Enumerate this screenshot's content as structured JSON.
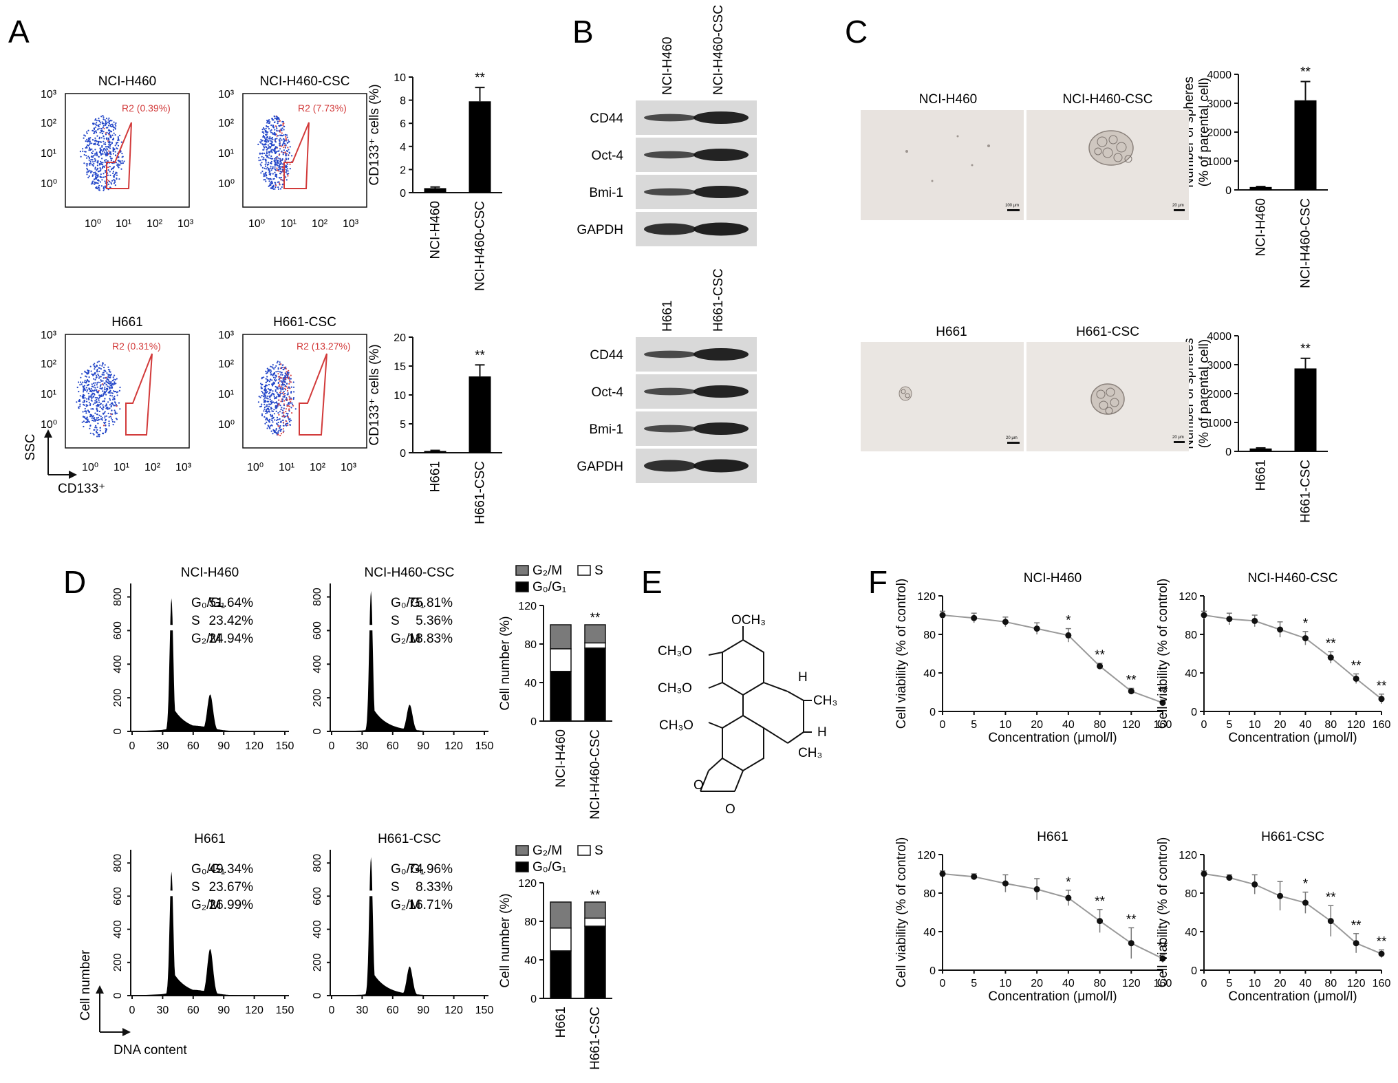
{
  "panels": {
    "A": {
      "label": "A",
      "flow_plots": [
        {
          "title": "NCI-H460",
          "gate": "R2 (0.39%)"
        },
        {
          "title": "NCI-H460-CSC",
          "gate": "R2 (7.73%)"
        },
        {
          "title": "H661",
          "gate": "R2 (0.31%)"
        },
        {
          "title": "H661-CSC",
          "gate": "R2 (13.27%)"
        }
      ],
      "yaxis_label": "SSC",
      "xaxis_label": "CD133⁺",
      "log_ticks": [
        "10⁰",
        "10¹",
        "10²",
        "10³"
      ]
    },
    "B": {
      "label": "B",
      "blots": [
        {
          "lanes": [
            "NCI-H460",
            "NCI-H460-CSC"
          ],
          "rows": [
            "CD44",
            "Oct-4",
            "Bmi-1",
            "GAPDH"
          ]
        },
        {
          "lanes": [
            "H661",
            "H661-CSC"
          ],
          "rows": [
            "CD44",
            "Oct-4",
            "Bmi-1",
            "GAPDH"
          ]
        }
      ]
    },
    "C": {
      "label": "C",
      "images": [
        {
          "title": "NCI-H460"
        },
        {
          "title": "NCI-H460-CSC"
        },
        {
          "title": "H661"
        },
        {
          "title": "H661-CSC"
        }
      ],
      "scale_labels": [
        "100 μm",
        "20 μm",
        "20 μm",
        "20 μm"
      ]
    },
    "D": {
      "label": "D",
      "histograms": [
        {
          "title": "NCI-H460",
          "stats": [
            [
              "G₀/G₁",
              "51.64%"
            ],
            [
              "S",
              "23.42%"
            ],
            [
              "G₂/M",
              "24.94%"
            ]
          ]
        },
        {
          "title": "NCI-H460-CSC",
          "stats": [
            [
              "G₀/G₁",
              "75.81%"
            ],
            [
              "S",
              "5.36%"
            ],
            [
              "G₂/M",
              "18.83%"
            ]
          ]
        },
        {
          "title": "H661",
          "stats": [
            [
              "G₀/G₁",
              "49.34%"
            ],
            [
              "S",
              "23.67%"
            ],
            [
              "G₂/M",
              "26.99%"
            ]
          ]
        },
        {
          "title": "H661-CSC",
          "stats": [
            [
              "G₀/G₁",
              "74.96%"
            ],
            [
              "S",
              "8.33%"
            ],
            [
              "G₂/M",
              "16.71%"
            ]
          ]
        }
      ],
      "yaxis_label": "Cell number",
      "xaxis_label": "DNA content",
      "hist_xticks": [
        "0",
        "30",
        "60",
        "90",
        "120",
        "150"
      ],
      "hist_yticks": [
        "0",
        "200",
        "400",
        "600",
        "800"
      ]
    },
    "E": {
      "label": "E",
      "labels": [
        "OCH₃",
        "CH₃O",
        "CH₃O",
        "CH₃O",
        "H",
        "CH₃",
        "H",
        "CH₃",
        "O",
        "O"
      ]
    },
    "F": {
      "label": "F"
    }
  },
  "chart_data": [
    {
      "type": "bar",
      "title": "",
      "ylabel": "CD133⁺ cells (%)",
      "categories": [
        "NCI-H460",
        "NCI-H460-CSC"
      ],
      "values": [
        0.39,
        7.9
      ],
      "errors": [
        0.1,
        1.2
      ],
      "ylim": [
        0,
        10
      ],
      "yticks": [
        "0",
        "2",
        "4",
        "6",
        "8",
        "10"
      ],
      "annotations": [
        "",
        "**"
      ]
    },
    {
      "type": "bar",
      "title": "",
      "ylabel": "CD133⁺ cells (%)",
      "categories": [
        "H661",
        "H661-CSC"
      ],
      "values": [
        0.31,
        13.2
      ],
      "errors": [
        0.1,
        2.0
      ],
      "ylim": [
        0,
        20
      ],
      "yticks": [
        "0",
        "5",
        "10",
        "15",
        "20"
      ],
      "annotations": [
        "",
        "**"
      ]
    },
    {
      "type": "bar",
      "title": "",
      "ylabel": "Number of spheres",
      "ylabel2": "(% of parental cell)",
      "categories": [
        "NCI-H460",
        "NCI-H460-CSC"
      ],
      "values": [
        100,
        3100
      ],
      "errors": [
        20,
        650
      ],
      "ylim": [
        0,
        4000
      ],
      "yticks": [
        "0",
        "1000",
        "2000",
        "3000",
        "4000"
      ],
      "annotations": [
        "",
        "**"
      ]
    },
    {
      "type": "bar",
      "title": "",
      "ylabel": "Number of spheres",
      "ylabel2": "(% of parental cell)",
      "categories": [
        "H661",
        "H661-CSC"
      ],
      "values": [
        100,
        2870
      ],
      "errors": [
        20,
        350
      ],
      "ylim": [
        0,
        4000
      ],
      "yticks": [
        "0",
        "1000",
        "2000",
        "3000",
        "4000"
      ],
      "annotations": [
        "",
        "**"
      ]
    },
    {
      "type": "bar",
      "title": "",
      "ylabel": "Cell number (%)",
      "stacked": true,
      "categories": [
        "NCI-H460",
        "NCI-H460-CSC"
      ],
      "series": [
        {
          "name": "G₀/G₁",
          "color": "#000000",
          "values": [
            51.64,
            75.81
          ]
        },
        {
          "name": "S",
          "color": "#ffffff",
          "values": [
            23.42,
            5.36
          ]
        },
        {
          "name": "G₂/M",
          "color": "#7a7a7a",
          "values": [
            24.94,
            18.83
          ]
        }
      ],
      "ylim": [
        0,
        120
      ],
      "yticks": [
        "0",
        "40",
        "80",
        "120"
      ],
      "annotations": [
        "",
        "**"
      ]
    },
    {
      "type": "bar",
      "title": "",
      "ylabel": "Cell number (%)",
      "stacked": true,
      "categories": [
        "H661",
        "H661-CSC"
      ],
      "series": [
        {
          "name": "G₀/G₁",
          "color": "#000000",
          "values": [
            49.34,
            74.96
          ]
        },
        {
          "name": "S",
          "color": "#ffffff",
          "values": [
            23.67,
            8.33
          ]
        },
        {
          "name": "G₂/M",
          "color": "#7a7a7a",
          "values": [
            26.99,
            16.71
          ]
        }
      ],
      "ylim": [
        0,
        120
      ],
      "yticks": [
        "0",
        "40",
        "80",
        "120"
      ],
      "annotations": [
        "",
        "**"
      ]
    },
    {
      "type": "line",
      "title": "NCI-H460",
      "xlabel": "Concentration (μmol/l)",
      "ylabel": "Cell viability (% of control)",
      "x": [
        "0",
        "5",
        "10",
        "20",
        "40",
        "80",
        "120",
        "160"
      ],
      "y": [
        100,
        97,
        93,
        86,
        79,
        47,
        21,
        9
      ],
      "errors": [
        4,
        5,
        5,
        6,
        7,
        3,
        3,
        3
      ],
      "ylim": [
        0,
        120
      ],
      "yticks": [
        "0",
        "40",
        "80",
        "120"
      ],
      "annotations": [
        "",
        "",
        "",
        "",
        "*",
        "**",
        "**",
        "**"
      ]
    },
    {
      "type": "line",
      "title": "NCI-H460-CSC",
      "xlabel": "Concentration (μmol/l)",
      "ylabel": "Cell viability (% of control)",
      "x": [
        "0",
        "5",
        "10",
        "20",
        "40",
        "80",
        "120",
        "160"
      ],
      "y": [
        100,
        96,
        94,
        85,
        76,
        56,
        34,
        13
      ],
      "errors": [
        4,
        6,
        6,
        8,
        7,
        6,
        5,
        5
      ],
      "ylim": [
        0,
        120
      ],
      "yticks": [
        "0",
        "40",
        "80",
        "120"
      ],
      "annotations": [
        "",
        "",
        "",
        "",
        "*",
        "**",
        "**",
        "**"
      ]
    },
    {
      "type": "line",
      "title": "H661",
      "xlabel": "Concentration (μmol/l)",
      "ylabel": "Cell viability (% of control)",
      "x": [
        "0",
        "5",
        "10",
        "20",
        "40",
        "80",
        "120",
        "160"
      ],
      "y": [
        100,
        97,
        90,
        84,
        75,
        51,
        28,
        12
      ],
      "errors": [
        3,
        3,
        9,
        11,
        8,
        12,
        16,
        4
      ],
      "ylim": [
        0,
        120
      ],
      "yticks": [
        "0",
        "40",
        "80",
        "120"
      ],
      "annotations": [
        "",
        "",
        "",
        "",
        "*",
        "**",
        "**",
        "**"
      ]
    },
    {
      "type": "line",
      "title": "H661-CSC",
      "xlabel": "Concentration (μmol/l)",
      "ylabel": "Cell viability (% of control)",
      "x": [
        "0",
        "5",
        "10",
        "20",
        "40",
        "80",
        "120",
        "160"
      ],
      "y": [
        100,
        96,
        89,
        77,
        70,
        51,
        28,
        17
      ],
      "errors": [
        3,
        3,
        10,
        15,
        11,
        16,
        10,
        4
      ],
      "ylim": [
        0,
        120
      ],
      "yticks": [
        "0",
        "40",
        "80",
        "120"
      ],
      "annotations": [
        "",
        "",
        "",
        "",
        "*",
        "**",
        "**",
        "**"
      ]
    }
  ]
}
